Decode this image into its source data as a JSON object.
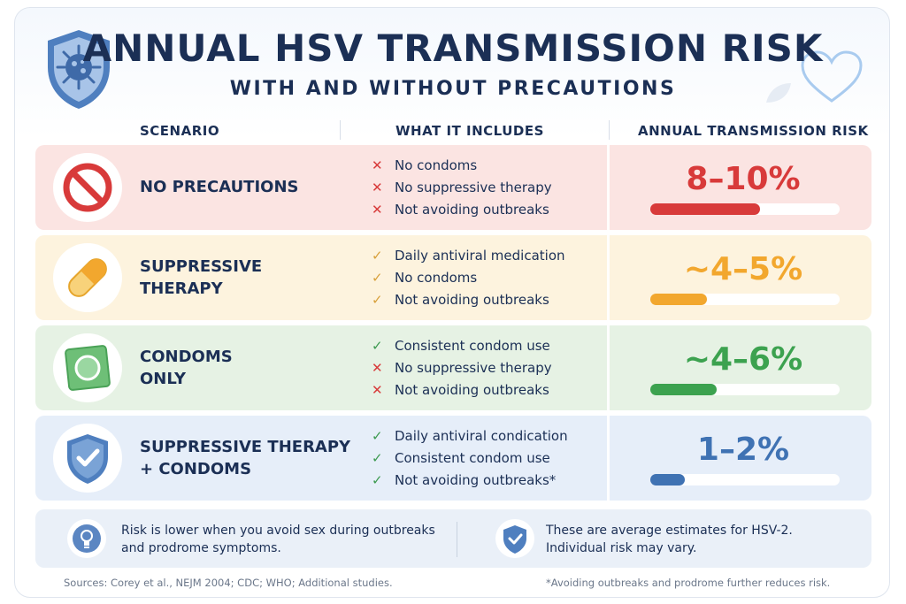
{
  "title": "ANNUAL HSV TRANSMISSION RISK",
  "subtitle": "WITH AND WITHOUT PRECAUTIONS",
  "columns": {
    "scenario": "SCENARIO",
    "includes": "WHAT IT INCLUDES",
    "risk": "ANNUAL TRANSMISSION RISK"
  },
  "rows": [
    {
      "scenario_line1": "NO PRECAUTIONS",
      "scenario_line2": "",
      "icon": "prohibited-icon",
      "items": [
        {
          "mark": "x",
          "text": "No condoms"
        },
        {
          "mark": "x",
          "text": "No suppressive therapy"
        },
        {
          "mark": "x",
          "text": "Not avoiding outbreaks"
        }
      ],
      "risk": "8–10%",
      "risk_fraction": 0.58,
      "color": "#d83a3a",
      "bg": "#fbe4e2"
    },
    {
      "scenario_line1": "SUPPRESSIVE",
      "scenario_line2": "THERAPY",
      "icon": "pill-icon",
      "items": [
        {
          "mark": "ck-orange",
          "text": "Daily antiviral medication"
        },
        {
          "mark": "ck-orange",
          "text": "No condoms"
        },
        {
          "mark": "ck-orange",
          "text": "Not avoiding outbreaks"
        }
      ],
      "risk": "~4–5%",
      "risk_fraction": 0.3,
      "color": "#f2a72e",
      "bg": "#fdf3de"
    },
    {
      "scenario_line1": "CONDOMS",
      "scenario_line2": "ONLY",
      "icon": "condom-package-icon",
      "items": [
        {
          "mark": "ck",
          "text": "Consistent condom use"
        },
        {
          "mark": "x",
          "text": "No suppressive therapy"
        },
        {
          "mark": "x",
          "text": "Not avoiding outbreaks"
        }
      ],
      "risk": "~4–6%",
      "risk_fraction": 0.35,
      "color": "#3ca24f",
      "bg": "#e6f2e4"
    },
    {
      "scenario_line1": "SUPPRESSIVE THERAPY",
      "scenario_line2": "+ CONDOMS",
      "icon": "shield-check-icon",
      "items": [
        {
          "mark": "ck",
          "text": "Daily antiviral condication"
        },
        {
          "mark": "ck",
          "text": "Consistent condom use"
        },
        {
          "mark": "ck",
          "text": "Not avoiding outbreaks*"
        }
      ],
      "risk": "1–2%",
      "risk_fraction": 0.18,
      "color": "#3f72b3",
      "bg": "#e6eef9"
    }
  ],
  "notes": {
    "left_line1": "Risk is lower when you avoid sex during outbreaks",
    "left_line2": "and prodrome symptoms.",
    "left_icon": "lightbulb-icon",
    "right_line1": "These are average estimates for HSV-2.",
    "right_line2": "Individual risk may vary.",
    "right_icon": "shield-check-icon"
  },
  "footer": {
    "sources": "Sources: Corey et al., NEJM 2004; CDC; WHO; Additional studies.",
    "footnote": "*Avoiding outbreaks and prodrome further reduces risk."
  },
  "marks": {
    "x": "✕",
    "ck": "✓",
    "ck-orange": "✓"
  }
}
